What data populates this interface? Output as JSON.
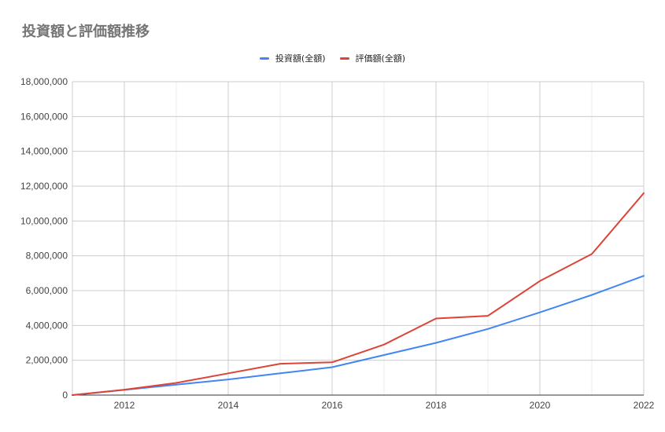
{
  "chart_data": {
    "type": "line",
    "title": "投資額と評価額推移",
    "xlabel": "",
    "ylabel": "",
    "x": [
      2011,
      2012,
      2013,
      2014,
      2015,
      2016,
      2017,
      2018,
      2019,
      2020,
      2021,
      2022
    ],
    "x_ticks": [
      "2012",
      "2014",
      "2016",
      "2018",
      "2020",
      "2022"
    ],
    "y_ticks": [
      "0",
      "2,000,000",
      "4,000,000",
      "6,000,000",
      "8,000,000",
      "10,000,000",
      "12,000,000",
      "14,000,000",
      "16,000,000",
      "18,000,000"
    ],
    "xlim": [
      2011,
      2022
    ],
    "ylim": [
      0,
      18000000
    ],
    "grid": true,
    "legend_position": "top",
    "series": [
      {
        "name": "投資額(全額)",
        "color": "#4285f4",
        "values": [
          0,
          300000,
          600000,
          900000,
          1250000,
          1600000,
          2300000,
          3000000,
          3800000,
          4750000,
          5750000,
          6850000
        ]
      },
      {
        "name": "評価額(全額)",
        "color": "#db4437",
        "values": [
          0,
          310000,
          700000,
          1250000,
          1800000,
          1880000,
          2900000,
          4400000,
          4550000,
          6550000,
          8100000,
          11600000
        ]
      }
    ]
  }
}
